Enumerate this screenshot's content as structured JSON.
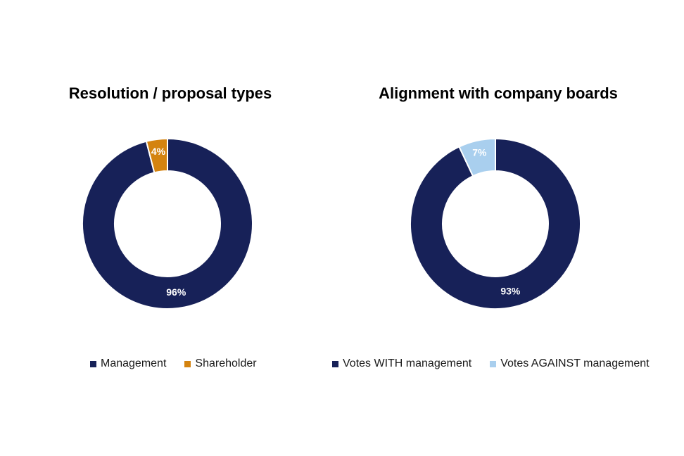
{
  "chart_data": [
    {
      "type": "pie",
      "donut": true,
      "title": "Resolution / proposal types",
      "slices": [
        {
          "name": "Management",
          "value": 96,
          "label": "96%",
          "color": "#172158"
        },
        {
          "name": "Shareholder",
          "value": 4,
          "label": "4%",
          "color": "#D4830F"
        }
      ],
      "legend_position": "bottom"
    },
    {
      "type": "pie",
      "donut": true,
      "title": "Alignment with company boards",
      "slices": [
        {
          "name": "Votes WITH management",
          "value": 93,
          "label": "93%",
          "color": "#172158"
        },
        {
          "name": "Votes AGAINST management",
          "value": 7,
          "label": "7%",
          "color": "#A9CFEE"
        }
      ],
      "legend_position": "bottom"
    }
  ]
}
